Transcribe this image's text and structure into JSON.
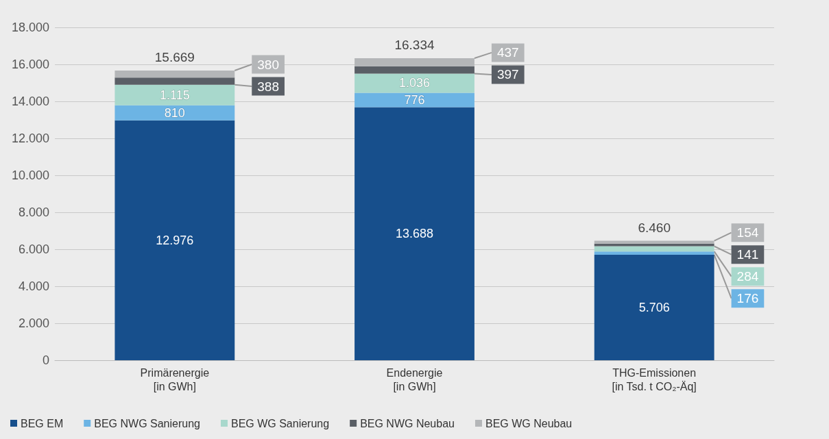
{
  "chart_data": {
    "type": "bar",
    "stacked": true,
    "categories": [
      "Primärenergie\n[in GWh]",
      "Endenergie\n[in GWh]",
      "THG-Emissionen\n[in Tsd. t CO₂-Äq]"
    ],
    "series": [
      {
        "name": "BEG EM",
        "color": "#174f8c",
        "values": [
          12976,
          13688,
          5706
        ],
        "value_labels": [
          "12.976",
          "13.688",
          "5.706"
        ]
      },
      {
        "name": "BEG NWG Sanierung",
        "color": "#6cb4e4",
        "values": [
          810,
          776,
          176
        ],
        "value_labels": [
          "810",
          "776",
          "176"
        ]
      },
      {
        "name": "BEG WG Sanierung",
        "color": "#a8d8cc",
        "values": [
          1115,
          1036,
          284
        ],
        "value_labels": [
          "1.115",
          "1.036",
          "284"
        ]
      },
      {
        "name": "BEG NWG Neubau",
        "color": "#5a5f66",
        "values": [
          388,
          397,
          141
        ],
        "value_labels": [
          "388",
          "397",
          "141"
        ]
      },
      {
        "name": "BEG WG Neubau",
        "color": "#b4b6b8",
        "values": [
          380,
          437,
          154
        ],
        "value_labels": [
          "380",
          "437",
          "154"
        ]
      }
    ],
    "totals": [
      "15.669",
      "16.334",
      "6.460"
    ],
    "ylim": [
      0,
      18000
    ],
    "yticks": [
      {
        "value": 0,
        "label": "0"
      },
      {
        "value": 2000,
        "label": "2.000"
      },
      {
        "value": 4000,
        "label": "4.000"
      },
      {
        "value": 6000,
        "label": "6.000"
      },
      {
        "value": 8000,
        "label": "8.000"
      },
      {
        "value": 10000,
        "label": "10.000"
      },
      {
        "value": 12000,
        "label": "12.000"
      },
      {
        "value": 14000,
        "label": "14.000"
      },
      {
        "value": 16000,
        "label": "16.000"
      },
      {
        "value": 18000,
        "label": "18.000"
      }
    ],
    "grid": "y",
    "legend": "bottom left"
  }
}
